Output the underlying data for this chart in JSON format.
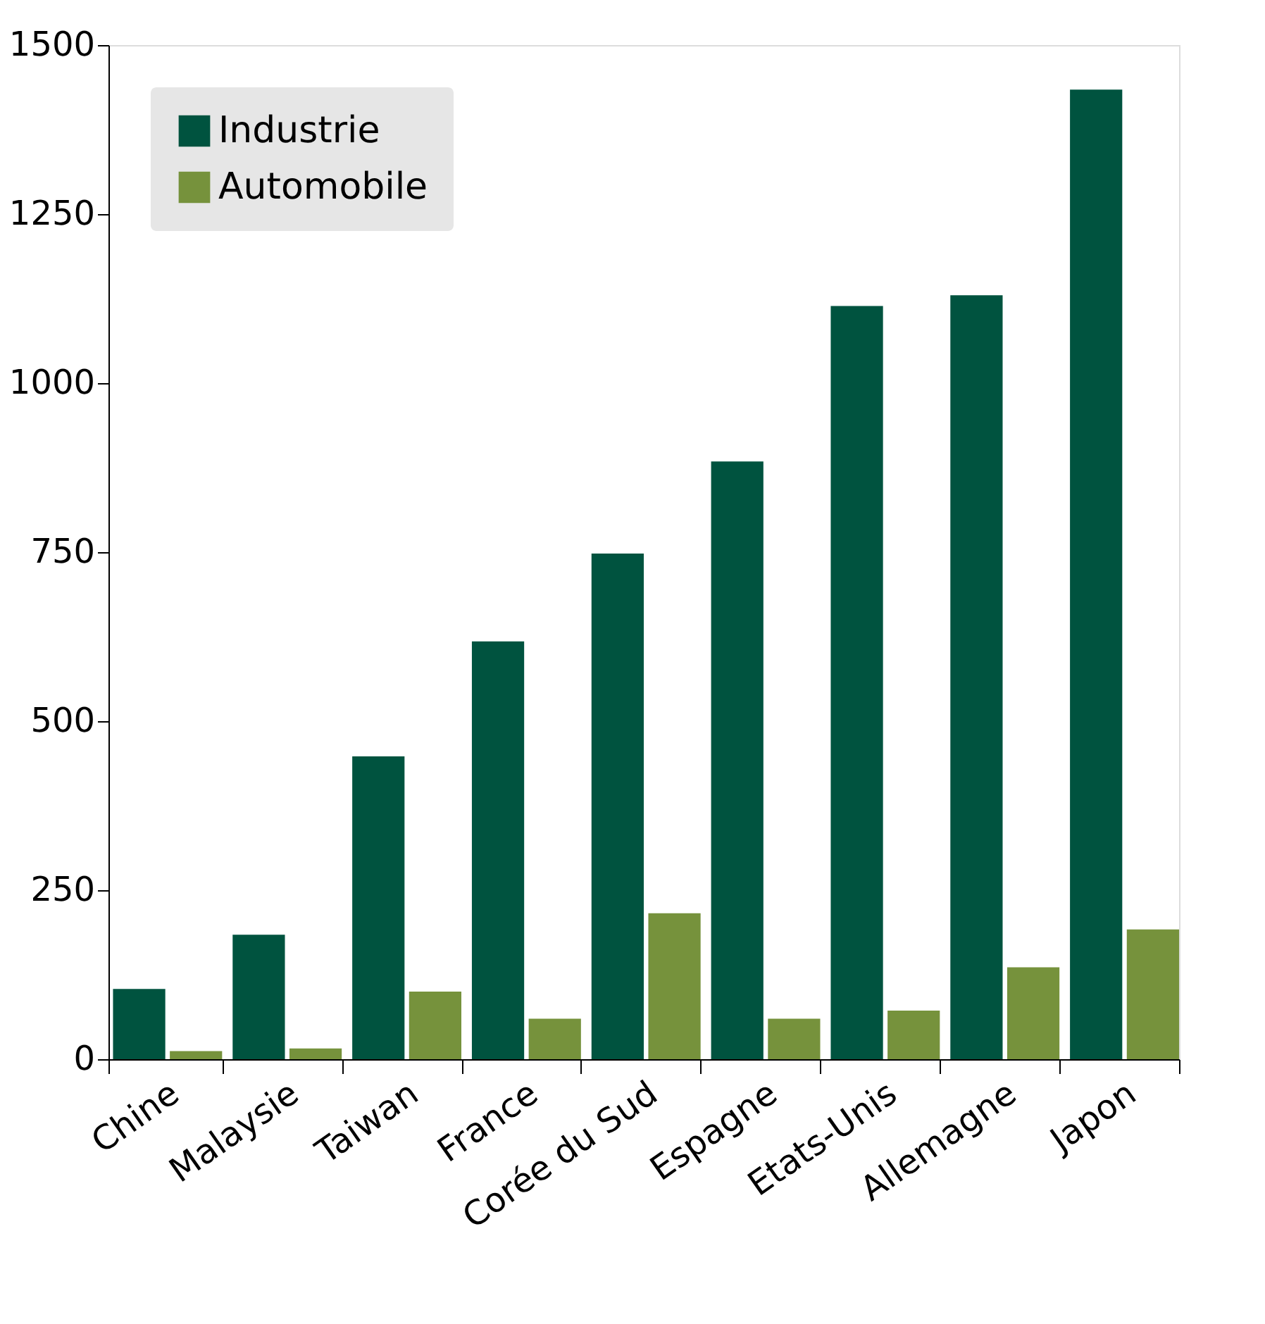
{
  "chart_data": {
    "type": "bar",
    "categories": [
      "Chine",
      "Malaysie",
      "Taiwan",
      "France",
      "Corée du Sud",
      "Espagne",
      "Etats-Unis",
      "Allemagne",
      "Japon"
    ],
    "series": [
      {
        "name": "Industrie",
        "color": "#00533f",
        "values": [
          104,
          184,
          448,
          618,
          748,
          884,
          1114,
          1130,
          1434
        ]
      },
      {
        "name": "Automobile",
        "color": "#76923c",
        "values": [
          12,
          16,
          100,
          60,
          216,
          60,
          72,
          136,
          192
        ]
      }
    ],
    "ylim": [
      0,
      1500
    ],
    "yticks": [
      0,
      250,
      500,
      750,
      1000,
      1250,
      1500
    ],
    "grid": false,
    "legend": "top left"
  }
}
